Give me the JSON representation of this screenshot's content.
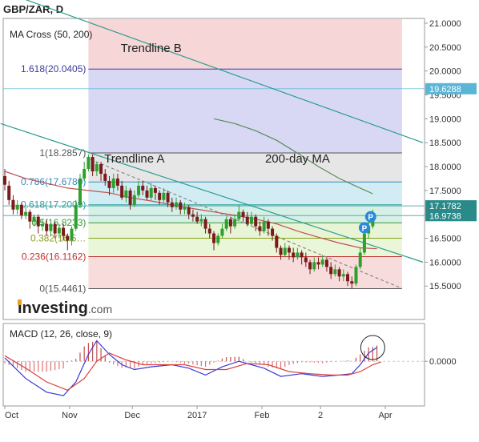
{
  "title": "GBP/ZAR, D",
  "chart_data": [
    {
      "type": "candlestick",
      "indicator_label": "MA Cross (50, 200)",
      "y_ticks": [
        15.5,
        16.0,
        16.5,
        17.0,
        17.5,
        18.0,
        18.5,
        19.0,
        19.5,
        20.0,
        20.5,
        21.0
      ],
      "y_tick_labels": [
        "15.5000",
        "16.0000",
        "16.5000",
        "17.0000",
        "17.5000",
        "18.0000",
        "18.5000",
        "19.0000",
        "19.5000",
        "20.0000",
        "20.5000",
        "21.0000"
      ],
      "ylim": [
        14.8,
        21.1
      ],
      "x_ticks": [
        {
          "day": 0,
          "label": "Oct"
        },
        {
          "day": 31,
          "label": "Nov"
        },
        {
          "day": 61,
          "label": "Dec"
        },
        {
          "day": 92,
          "label": "2017"
        },
        {
          "day": 123,
          "label": "Feb"
        },
        {
          "day": 151,
          "label": "2"
        },
        {
          "day": 182,
          "label": "Apr"
        }
      ],
      "xlim": [
        0,
        200
      ],
      "price_labels": [
        {
          "value": 19.6288,
          "text": "19.6288",
          "color": "#5bb6d6"
        },
        {
          "value": 17.1782,
          "text": "17.1782",
          "color": "#2a8a8a"
        },
        {
          "value": 16.9738,
          "text": "16.9738",
          "color": "#2a8a8a"
        }
      ],
      "fib_levels": [
        {
          "value": 20.0405,
          "text": "1.618(20.0405)",
          "color": "#3a3aa0"
        },
        {
          "value": 18.2857,
          "text": "1(18.2857)",
          "color": "#555555"
        },
        {
          "value": 17.678,
          "text": "0.786(17.6780)",
          "color": "#3a8ab8"
        },
        {
          "value": 17.2009,
          "text": "0.618(17.2009)",
          "color": "#2aa0a0"
        },
        {
          "value": 16.8233,
          "text": "0.5(16.8233)",
          "color": "#3a9a3a"
        },
        {
          "value": 16.5,
          "text": "0.382(16.5…",
          "color": "#88a020"
        },
        {
          "value": 16.1162,
          "text": "0.236(16.1162)",
          "color": "#c03030"
        },
        {
          "value": 15.4461,
          "text": "0(15.4461)",
          "color": "#555555"
        }
      ],
      "fib_start_day": 40,
      "fib_end_day": 190,
      "annotations": [
        {
          "text": "Trendline B",
          "day": 70,
          "value": 20.4
        },
        {
          "text": "Trendline A",
          "day": 62,
          "value": 18.08
        },
        {
          "text": "200-day MA",
          "day": 140,
          "value": 18.08
        }
      ],
      "trendlines": [
        {
          "from": [
            0,
            21.65
          ],
          "to": [
            200,
            18.5
          ],
          "color": "#2a9d8f"
        },
        {
          "from": [
            -2,
            18.9
          ],
          "to": [
            200,
            16.0
          ],
          "color": "#2a9d8f"
        },
        {
          "from": [
            41,
            18.15
          ],
          "to": [
            190,
            15.45
          ],
          "color": "#888888",
          "dashed": true
        }
      ],
      "ma_50": [
        [
          0,
          17.9
        ],
        [
          10,
          17.75
        ],
        [
          20,
          17.65
        ],
        [
          30,
          17.55
        ],
        [
          40,
          17.5
        ],
        [
          50,
          17.45
        ],
        [
          60,
          17.35
        ],
        [
          70,
          17.28
        ],
        [
          80,
          17.2
        ],
        [
          90,
          17.12
        ],
        [
          100,
          17.05
        ],
        [
          110,
          16.98
        ],
        [
          120,
          16.9
        ],
        [
          130,
          16.8
        ],
        [
          140,
          16.65
        ],
        [
          150,
          16.52
        ],
        [
          160,
          16.4
        ],
        [
          170,
          16.3
        ],
        [
          178,
          16.28
        ]
      ],
      "ma_200": [
        [
          100,
          19.0
        ],
        [
          110,
          18.9
        ],
        [
          120,
          18.75
        ],
        [
          130,
          18.55
        ],
        [
          140,
          18.28
        ],
        [
          150,
          18.0
        ],
        [
          160,
          17.75
        ],
        [
          170,
          17.55
        ],
        [
          176,
          17.43
        ]
      ],
      "candles": [
        [
          0,
          17.8,
          17.62,
          17.95,
          17.5
        ],
        [
          2,
          17.6,
          17.3,
          17.7,
          17.2
        ],
        [
          4,
          17.3,
          17.1,
          17.4,
          17.0
        ],
        [
          6,
          17.1,
          17.2,
          17.3,
          17.0
        ],
        [
          8,
          17.2,
          16.98,
          17.25,
          16.9
        ],
        [
          10,
          16.98,
          17.05,
          17.15,
          16.9
        ],
        [
          12,
          17.05,
          16.85,
          17.1,
          16.7
        ],
        [
          14,
          16.85,
          16.95,
          17.0,
          16.75
        ],
        [
          16,
          16.95,
          16.75,
          17.0,
          16.6
        ],
        [
          18,
          16.75,
          16.8,
          16.9,
          16.65
        ],
        [
          20,
          16.8,
          16.65,
          16.9,
          16.55
        ],
        [
          22,
          16.65,
          16.8,
          16.85,
          16.55
        ],
        [
          24,
          16.8,
          16.6,
          16.85,
          16.5
        ],
        [
          26,
          16.6,
          16.72,
          16.8,
          16.5
        ],
        [
          28,
          16.72,
          16.55,
          16.8,
          16.45
        ],
        [
          30,
          16.55,
          16.45,
          16.6,
          16.25
        ],
        [
          32,
          16.45,
          16.7,
          16.75,
          16.35
        ],
        [
          34,
          16.7,
          17.2,
          17.3,
          16.65
        ],
        [
          36,
          17.2,
          17.75,
          17.85,
          17.15
        ],
        [
          38,
          17.75,
          17.95,
          18.1,
          17.7
        ],
        [
          40,
          17.95,
          18.2,
          18.25,
          17.9
        ],
        [
          42,
          18.2,
          17.9,
          18.25,
          17.8
        ],
        [
          44,
          17.9,
          18.05,
          18.1,
          17.8
        ],
        [
          46,
          18.05,
          17.85,
          18.1,
          17.7
        ],
        [
          48,
          17.85,
          17.7,
          17.95,
          17.6
        ],
        [
          50,
          17.7,
          17.55,
          17.8,
          17.4
        ],
        [
          52,
          17.55,
          17.75,
          17.85,
          17.45
        ],
        [
          54,
          17.75,
          17.6,
          17.85,
          17.5
        ],
        [
          56,
          17.6,
          17.35,
          17.7,
          17.3
        ],
        [
          58,
          17.35,
          17.5,
          17.6,
          17.25
        ],
        [
          60,
          17.5,
          17.2,
          17.55,
          17.1
        ],
        [
          62,
          17.2,
          17.4,
          17.5,
          17.15
        ],
        [
          64,
          17.4,
          17.6,
          17.7,
          17.35
        ],
        [
          66,
          17.6,
          17.5,
          17.7,
          17.4
        ],
        [
          68,
          17.5,
          17.35,
          17.6,
          17.3
        ],
        [
          70,
          17.35,
          17.55,
          17.65,
          17.3
        ],
        [
          72,
          17.55,
          17.45,
          17.6,
          17.3
        ],
        [
          74,
          17.45,
          17.3,
          17.5,
          17.2
        ],
        [
          76,
          17.3,
          17.45,
          17.55,
          17.25
        ],
        [
          78,
          17.45,
          17.25,
          17.5,
          17.15
        ],
        [
          80,
          17.25,
          17.15,
          17.35,
          17.05
        ],
        [
          82,
          17.15,
          17.25,
          17.35,
          17.1
        ],
        [
          84,
          17.25,
          17.1,
          17.3,
          17.0
        ],
        [
          86,
          17.1,
          17.15,
          17.25,
          17.0
        ],
        [
          88,
          17.15,
          17.0,
          17.2,
          16.9
        ],
        [
          90,
          17.0,
          16.95,
          17.1,
          16.85
        ],
        [
          92,
          16.95,
          16.85,
          17.05,
          16.8
        ],
        [
          94,
          16.85,
          16.9,
          17.0,
          16.75
        ],
        [
          96,
          16.9,
          16.7,
          16.95,
          16.6
        ],
        [
          98,
          16.7,
          16.6,
          16.8,
          16.5
        ],
        [
          100,
          16.6,
          16.4,
          16.65,
          16.25
        ],
        [
          102,
          16.4,
          16.55,
          16.6,
          16.35
        ],
        [
          104,
          16.55,
          16.7,
          16.8,
          16.5
        ],
        [
          106,
          16.7,
          16.9,
          16.95,
          16.65
        ],
        [
          108,
          16.9,
          16.75,
          16.95,
          16.6
        ],
        [
          110,
          16.75,
          16.9,
          17.0,
          16.7
        ],
        [
          112,
          16.9,
          17.05,
          17.2,
          16.85
        ],
        [
          114,
          17.05,
          16.95,
          17.1,
          16.85
        ],
        [
          116,
          16.95,
          16.8,
          17.05,
          16.75
        ],
        [
          118,
          16.8,
          16.95,
          17.05,
          16.75
        ],
        [
          120,
          16.95,
          16.75,
          17.0,
          16.65
        ],
        [
          122,
          16.75,
          16.65,
          16.85,
          16.55
        ],
        [
          124,
          16.65,
          16.85,
          16.95,
          16.6
        ],
        [
          126,
          16.85,
          16.7,
          16.9,
          16.55
        ],
        [
          128,
          16.7,
          16.55,
          16.75,
          16.45
        ],
        [
          130,
          16.55,
          16.3,
          16.6,
          16.2
        ],
        [
          132,
          16.3,
          16.15,
          16.35,
          16.05
        ],
        [
          134,
          16.15,
          16.3,
          16.4,
          16.1
        ],
        [
          136,
          16.3,
          16.2,
          16.35,
          16.05
        ],
        [
          138,
          16.2,
          16.1,
          16.3,
          16.0
        ],
        [
          140,
          16.1,
          16.2,
          16.3,
          16.05
        ],
        [
          142,
          16.2,
          16.1,
          16.25,
          15.95
        ],
        [
          144,
          16.1,
          16.0,
          16.2,
          15.9
        ],
        [
          146,
          16.0,
          15.85,
          16.05,
          15.75
        ],
        [
          148,
          15.85,
          16.0,
          16.1,
          15.8
        ],
        [
          150,
          16.0,
          15.95,
          16.1,
          15.85
        ],
        [
          152,
          15.95,
          16.05,
          16.15,
          15.9
        ],
        [
          154,
          16.05,
          15.9,
          16.1,
          15.8
        ],
        [
          156,
          15.9,
          15.75,
          16.0,
          15.65
        ],
        [
          158,
          15.75,
          15.85,
          15.95,
          15.7
        ],
        [
          160,
          15.85,
          15.7,
          15.9,
          15.6
        ],
        [
          162,
          15.7,
          15.75,
          15.85,
          15.6
        ],
        [
          164,
          15.75,
          15.6,
          15.8,
          15.5
        ],
        [
          166,
          15.6,
          15.55,
          15.7,
          15.45
        ],
        [
          168,
          15.55,
          15.9,
          15.95,
          15.5
        ],
        [
          170,
          15.9,
          16.2,
          16.3,
          15.85
        ],
        [
          172,
          16.2,
          16.6,
          16.7,
          16.15
        ],
        [
          174,
          16.6,
          16.75,
          16.85,
          16.5
        ],
        [
          176,
          16.75,
          16.97,
          17.1,
          16.7
        ]
      ],
      "markers": [
        {
          "day": 172,
          "value": 16.72,
          "text": "P"
        },
        {
          "day": 175,
          "value": 16.95,
          "text": "P"
        }
      ],
      "brand": {
        "text": "Investing",
        "suffix": ".com"
      }
    },
    {
      "type": "line",
      "indicator_label": "MACD (12, 26, close, 9)",
      "y_tick_labels": [
        "0.0000"
      ],
      "macd": [
        [
          0,
          0.05
        ],
        [
          10,
          -0.25
        ],
        [
          20,
          -0.45
        ],
        [
          28,
          -0.5
        ],
        [
          34,
          -0.3
        ],
        [
          40,
          0.1
        ],
        [
          44,
          0.3
        ],
        [
          50,
          0.1
        ],
        [
          56,
          -0.05
        ],
        [
          62,
          -0.12
        ],
        [
          70,
          -0.08
        ],
        [
          80,
          -0.05
        ],
        [
          88,
          -0.1
        ],
        [
          96,
          -0.2
        ],
        [
          104,
          -0.08
        ],
        [
          112,
          0.0
        ],
        [
          118,
          -0.05
        ],
        [
          124,
          -0.1
        ],
        [
          132,
          -0.22
        ],
        [
          142,
          -0.18
        ],
        [
          152,
          -0.22
        ],
        [
          160,
          -0.2
        ],
        [
          166,
          -0.18
        ],
        [
          170,
          -0.05
        ],
        [
          174,
          0.12
        ],
        [
          178,
          0.2
        ]
      ],
      "signal": [
        [
          0,
          0.08
        ],
        [
          10,
          -0.1
        ],
        [
          20,
          -0.3
        ],
        [
          30,
          -0.42
        ],
        [
          38,
          -0.25
        ],
        [
          44,
          0.0
        ],
        [
          50,
          0.12
        ],
        [
          58,
          0.02
        ],
        [
          66,
          -0.05
        ],
        [
          76,
          -0.05
        ],
        [
          86,
          -0.05
        ],
        [
          96,
          -0.12
        ],
        [
          106,
          -0.12
        ],
        [
          116,
          -0.03
        ],
        [
          126,
          -0.05
        ],
        [
          136,
          -0.15
        ],
        [
          146,
          -0.18
        ],
        [
          156,
          -0.2
        ],
        [
          164,
          -0.2
        ],
        [
          170,
          -0.15
        ],
        [
          176,
          -0.05
        ],
        [
          180,
          -0.01
        ]
      ],
      "ylim": [
        -0.65,
        0.55
      ]
    }
  ]
}
